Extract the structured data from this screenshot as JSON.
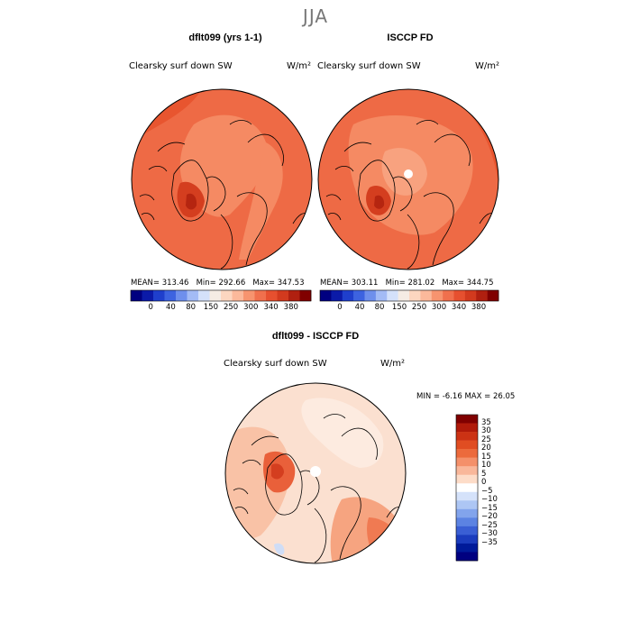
{
  "season": "JJA",
  "panels": [
    {
      "title": "dflt099 (yrs 1-1)",
      "variable": "Clearsky surf down SW",
      "units": "W/m²",
      "stats": {
        "mean": "313.46",
        "min": "292.66",
        "max": "347.53"
      }
    },
    {
      "title": "ISCCP FD",
      "variable": "Clearsky surf down SW",
      "units": "W/m²",
      "stats": {
        "mean": "303.11",
        "min": "281.02",
        "max": "344.75"
      }
    }
  ],
  "diff_panel": {
    "title": "dflt099 - ISCCP FD",
    "variable": "Clearsky surf down SW",
    "units": "W/m²",
    "stats": {
      "min": "-6.16",
      "max": "26.05"
    }
  },
  "stat_labels": {
    "mean": "MEAN=",
    "min": "Min=",
    "max": "Max=",
    "diff_min": "MIN =",
    "diff_max": "MAX ="
  },
  "chart_data": [
    {
      "type": "heatmap",
      "title": "dflt099 (yrs 1-1)",
      "subtitle": "Clearsky surf down SW",
      "units": "W/m²",
      "projection": "north polar stereographic",
      "colorbar_ticks": [
        "0",
        "40",
        "80",
        "150",
        "250",
        "300",
        "340",
        "380"
      ],
      "colorbar_colors": [
        "#000080",
        "#0b1aa8",
        "#1f3fcc",
        "#3d63e0",
        "#6e8fec",
        "#a3bbf5",
        "#d4e1fa",
        "#f5ece4",
        "#fcd6c0",
        "#fbb99b",
        "#f7946f",
        "#f0704d",
        "#e6502f",
        "#d23a1e",
        "#b02010",
        "#800000"
      ],
      "mean": 313.46,
      "min": 292.66,
      "max": 347.53
    },
    {
      "type": "heatmap",
      "title": "ISCCP FD",
      "subtitle": "Clearsky surf down SW",
      "units": "W/m²",
      "projection": "north polar stereographic",
      "colorbar_ticks": [
        "0",
        "40",
        "80",
        "150",
        "250",
        "300",
        "340",
        "380"
      ],
      "colorbar_colors": [
        "#000080",
        "#0b1aa8",
        "#1f3fcc",
        "#3d63e0",
        "#6e8fec",
        "#a3bbf5",
        "#d4e1fa",
        "#f5ece4",
        "#fcd6c0",
        "#fbb99b",
        "#f7946f",
        "#f0704d",
        "#e6502f",
        "#d23a1e",
        "#b02010",
        "#800000"
      ],
      "mean": 303.11,
      "min": 281.02,
      "max": 344.75
    },
    {
      "type": "heatmap",
      "title": "dflt099 - ISCCP FD",
      "subtitle": "Clearsky surf down SW",
      "units": "W/m²",
      "projection": "north polar stereographic",
      "colorbar_ticks": [
        "35",
        "30",
        "25",
        "20",
        "15",
        "10",
        "5",
        "0",
        "−5",
        "−10",
        "−15",
        "−20",
        "−25",
        "−30",
        "−35"
      ],
      "colorbar_colors": [
        "#800000",
        "#b01a0a",
        "#cc3214",
        "#e04d22",
        "#ec6a3c",
        "#f4906a",
        "#f9b79a",
        "#fddcc8",
        "#ffffff",
        "#d5e2fa",
        "#adc6f4",
        "#82a4ec",
        "#5c83e2",
        "#3a5fd4",
        "#1b3cbd",
        "#001a99",
        "#000080"
      ],
      "min": -6.16,
      "max": 26.05
    }
  ]
}
